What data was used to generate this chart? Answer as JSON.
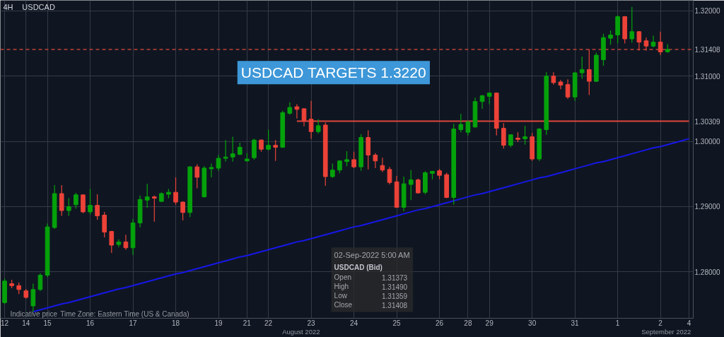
{
  "chart_data": {
    "type": "candlestick",
    "title": "USDCAD TARGETS 1.3220",
    "categories": [
      "12",
      null,
      null,
      "14",
      null,
      null,
      "15",
      null,
      null,
      null,
      null,
      null,
      "16",
      null,
      null,
      null,
      null,
      null,
      "17",
      null,
      null,
      null,
      null,
      null,
      "18",
      null,
      null,
      null,
      null,
      null,
      "19",
      null,
      null,
      null,
      "21",
      null,
      null,
      "22",
      null,
      null,
      null,
      null,
      null,
      "23",
      null,
      null,
      null,
      null,
      null,
      "24",
      null,
      null,
      null,
      null,
      null,
      "25",
      null,
      null,
      null,
      null,
      null,
      "26",
      null,
      null,
      null,
      "28",
      null,
      null,
      "29",
      null,
      null,
      null,
      null,
      null,
      "30",
      null,
      null,
      null,
      null,
      null,
      "31",
      null,
      null,
      null,
      null,
      null,
      "1",
      null,
      null,
      null,
      null,
      null,
      "2",
      null,
      null,
      null,
      "4"
    ],
    "ohlc": [
      [
        1.2753,
        1.279,
        1.2751,
        1.2786
      ],
      [
        1.2782,
        1.2788,
        1.2775,
        1.2779
      ],
      [
        1.2779,
        1.2784,
        1.2766,
        1.2773
      ],
      [
        1.2771,
        1.2774,
        1.2759,
        1.2761
      ],
      [
        1.2748,
        1.2782,
        1.2739,
        1.2773
      ],
      [
        1.2773,
        1.2798,
        1.2771,
        1.2795
      ],
      [
        1.2795,
        1.2874,
        1.2792,
        1.2869
      ],
      [
        1.2868,
        1.2933,
        1.2866,
        1.292
      ],
      [
        1.292,
        1.2933,
        1.2886,
        1.2894
      ],
      [
        1.2894,
        1.2913,
        1.2886,
        1.29
      ],
      [
        1.2903,
        1.2921,
        1.2897,
        1.2918
      ],
      [
        1.2918,
        1.2919,
        1.289,
        1.2892
      ],
      [
        1.2892,
        1.2927,
        1.2888,
        1.2902
      ],
      [
        1.2902,
        1.2919,
        1.288,
        1.2886
      ],
      [
        1.2887,
        1.2892,
        1.2853,
        1.2861
      ],
      [
        1.2862,
        1.2863,
        1.2829,
        1.2841
      ],
      [
        1.2842,
        1.285,
        1.2838,
        1.2846
      ],
      [
        1.2846,
        1.2857,
        1.2834,
        1.2837
      ],
      [
        1.2837,
        1.2881,
        1.2826,
        1.2875
      ],
      [
        1.2875,
        1.2917,
        1.2868,
        1.2911
      ],
      [
        1.291,
        1.2935,
        1.2898,
        1.2915
      ],
      [
        1.2915,
        1.2917,
        1.2877,
        1.2913
      ],
      [
        1.2908,
        1.2922,
        1.2907,
        1.292
      ],
      [
        1.2919,
        1.2927,
        1.2913,
        1.2922
      ],
      [
        1.2922,
        1.2945,
        1.2903,
        1.2907
      ],
      [
        1.2907,
        1.2908,
        1.2879,
        1.2891
      ],
      [
        1.2891,
        1.2962,
        1.2884,
        1.2961
      ],
      [
        1.2961,
        1.2965,
        1.2928,
        1.2945
      ],
      [
        1.2915,
        1.2962,
        1.2914,
        1.2959
      ],
      [
        1.2958,
        1.2966,
        1.2945,
        1.296
      ],
      [
        1.2959,
        1.2979,
        1.2955,
        1.2974
      ],
      [
        1.2974,
        1.3002,
        1.2969,
        1.2976
      ],
      [
        1.2976,
        1.3007,
        1.2969,
        1.2981
      ],
      [
        1.298,
        1.2998,
        1.2979,
        1.2991
      ],
      [
        1.297,
        1.2982,
        1.2969,
        1.2973
      ],
      [
        1.2975,
        1.3004,
        1.2972,
        1.3002
      ],
      [
        1.3002,
        1.3003,
        1.2984,
        1.2988
      ],
      [
        1.2988,
        1.3018,
        1.2986,
        1.2994
      ],
      [
        1.2994,
        1.3002,
        1.297,
        1.2991
      ],
      [
        1.2991,
        1.3047,
        1.299,
        1.3044
      ],
      [
        1.3043,
        1.306,
        1.3041,
        1.3052
      ],
      [
        1.3053,
        1.3057,
        1.3035,
        1.3049
      ],
      [
        1.305,
        1.3051,
        1.3023,
        1.3032
      ],
      [
        1.3034,
        1.3062,
        1.3004,
        1.3015
      ],
      [
        1.3015,
        1.3034,
        1.3012,
        1.3024
      ],
      [
        1.3025,
        1.3029,
        1.2932,
        1.2946
      ],
      [
        1.2946,
        1.2966,
        1.2944,
        1.2956
      ],
      [
        1.2956,
        1.2971,
        1.2951,
        1.297
      ],
      [
        1.2969,
        1.2985,
        1.2962,
        1.2972
      ],
      [
        1.2972,
        1.2984,
        1.2959,
        1.2961
      ],
      [
        1.2961,
        1.3011,
        1.2955,
        1.3006
      ],
      [
        1.3006,
        1.3017,
        1.2957,
        1.2979
      ],
      [
        1.2979,
        1.2982,
        1.2959,
        1.297
      ],
      [
        1.2963,
        1.2975,
        1.2953,
        1.2956
      ],
      [
        1.2957,
        1.2961,
        1.2934,
        1.2937
      ],
      [
        1.2938,
        1.2947,
        1.2898,
        1.2899
      ],
      [
        1.2899,
        1.2946,
        1.2893,
        1.2935
      ],
      [
        1.2934,
        1.2956,
        1.291,
        1.2941
      ],
      [
        1.2941,
        1.2943,
        1.292,
        1.2921
      ],
      [
        1.2922,
        1.2954,
        1.2919,
        1.2952
      ],
      [
        1.2951,
        1.2955,
        1.2942,
        1.2954
      ],
      [
        1.2955,
        1.2958,
        1.2942,
        1.2948
      ],
      [
        1.2949,
        1.2952,
        1.2913,
        1.2914
      ],
      [
        1.2914,
        1.3027,
        1.2903,
        1.3019
      ],
      [
        1.3018,
        1.3042,
        1.3014,
        1.3026
      ],
      [
        1.3014,
        1.3032,
        1.3009,
        1.303
      ],
      [
        1.3022,
        1.3067,
        1.3021,
        1.3061
      ],
      [
        1.3061,
        1.3071,
        1.305,
        1.307
      ],
      [
        1.3069,
        1.3075,
        1.3057,
        1.3074
      ],
      [
        1.3074,
        1.3075,
        1.3009,
        1.302
      ],
      [
        1.302,
        1.3028,
        1.2989,
        1.2994
      ],
      [
        1.2994,
        1.3011,
        1.2991,
        1.301
      ],
      [
        1.3005,
        1.3014,
        1.2999,
        1.3003
      ],
      [
        1.3004,
        1.3024,
        1.2995,
        1.3007
      ],
      [
        1.3007,
        1.3013,
        1.297,
        1.2973
      ],
      [
        1.2973,
        1.302,
        1.297,
        1.3019
      ],
      [
        1.3018,
        1.3106,
        1.301,
        1.31
      ],
      [
        1.31,
        1.3106,
        1.3087,
        1.309
      ],
      [
        1.3091,
        1.3094,
        1.308,
        1.3086
      ],
      [
        1.3087,
        1.3095,
        1.3065,
        1.3068
      ],
      [
        1.3068,
        1.3106,
        1.3062,
        1.3105
      ],
      [
        1.3105,
        1.313,
        1.3096,
        1.311
      ],
      [
        1.311,
        1.3141,
        1.3071,
        1.3092
      ],
      [
        1.3092,
        1.3136,
        1.3091,
        1.3132
      ],
      [
        1.3125,
        1.3165,
        1.3116,
        1.3159
      ],
      [
        1.3158,
        1.317,
        1.3148,
        1.3163
      ],
      [
        1.3163,
        1.3193,
        1.315,
        1.3191
      ],
      [
        1.3191,
        1.3192,
        1.315,
        1.3157
      ],
      [
        1.3157,
        1.3206,
        1.3151,
        1.3168
      ],
      [
        1.3168,
        1.3169,
        1.3139,
        1.3152
      ],
      [
        1.3154,
        1.3159,
        1.3139,
        1.3146
      ],
      [
        1.3146,
        1.3162,
        1.3144,
        1.3152
      ],
      [
        1.3152,
        1.3168,
        1.3132,
        1.3137
      ],
      [
        1.31373,
        1.3149,
        1.31359,
        1.31408
      ],
      null,
      null,
      null
    ],
    "colors": [
      "#05a20b",
      "#ec4238",
      "#ec4238",
      "#ec4238",
      "#05a20b",
      "#05a20b",
      "#05a20b",
      "#05a20b",
      "#ec4238",
      "#05a20b",
      "#05a20b",
      "#ec4238",
      "#05a20b",
      "#ec4238",
      "#ec4238",
      "#ec4238",
      "#05a20b",
      "#ec4238",
      "#05a20b",
      "#05a20b",
      "#05a20b",
      "#ec4238",
      "#05a20b",
      "#05a20b",
      "#ec4238",
      "#ec4238",
      "#05a20b",
      "#ec4238",
      "#05a20b",
      "#05a20b",
      "#05a20b",
      "#05a20b",
      "#05a20b",
      "#05a20b",
      "#05a20b",
      "#05a20b",
      "#ec4238",
      "#05a20b",
      "#ec4238",
      "#05a20b",
      "#05a20b",
      "#ec4238",
      "#ec4238",
      "#ec4238",
      "#05a20b",
      "#ec4238",
      "#05a20b",
      "#05a20b",
      "#05a20b",
      "#ec4238",
      "#05a20b",
      "#ec4238",
      "#ec4238",
      "#ec4238",
      "#ec4238",
      "#ec4238",
      "#05a20b",
      "#05a20b",
      "#ec4238",
      "#05a20b",
      "#05a20b",
      "#ec4238",
      "#ec4238",
      "#05a20b",
      "#05a20b",
      "#05a20b",
      "#05a20b",
      "#05a20b",
      "#05a20b",
      "#ec4238",
      "#ec4238",
      "#05a20b",
      "#ec4238",
      "#05a20b",
      "#ec4238",
      "#05a20b",
      "#05a20b",
      "#ec4238",
      "#ec4238",
      "#ec4238",
      "#05a20b",
      "#05a20b",
      "#ec4238",
      "#05a20b",
      "#05a20b",
      "#05a20b",
      "#05a20b",
      "#ec4238",
      "#05a20b",
      "#ec4238",
      "#ec4238",
      "#05a20b",
      "#ec4238",
      "#05a20b",
      null,
      null,
      null
    ],
    "series": [
      {
        "type": "line",
        "color": "#1717e8",
        "values": [
          null,
          null,
          null,
          null,
          1.2739,
          1.2742,
          1.2745,
          1.2748,
          1.2751,
          1.2753,
          1.2756,
          1.2759,
          1.2762,
          1.2765,
          1.2768,
          1.2771,
          1.2774,
          1.2776,
          1.2779,
          1.2782,
          1.2785,
          1.2788,
          1.2791,
          1.2794,
          1.2797,
          1.2799,
          1.2802,
          1.2805,
          1.2808,
          1.2811,
          1.2814,
          1.2817,
          1.282,
          1.2823,
          1.2825,
          1.2828,
          1.2831,
          1.2834,
          1.2837,
          1.284,
          1.2843,
          1.2846,
          1.2848,
          1.2851,
          1.2854,
          1.2857,
          1.286,
          1.2863,
          1.2866,
          1.2869,
          1.2871,
          1.2874,
          1.2877,
          1.288,
          1.2883,
          1.2886,
          1.2889,
          1.2892,
          1.2895,
          1.2897,
          1.29,
          1.2903,
          1.2906,
          1.2909,
          1.2912,
          1.2915,
          1.2918,
          1.292,
          1.2923,
          1.2926,
          1.2929,
          1.2932,
          1.2935,
          1.2938,
          1.2941,
          1.2944,
          1.2946,
          1.2949,
          1.2952,
          1.2955,
          1.2958,
          1.2961,
          1.2964,
          1.2967,
          1.2969,
          1.2972,
          1.2975,
          1.2978,
          1.2981,
          1.2984,
          1.2987,
          1.299,
          1.2992,
          1.2995,
          1.2998,
          1.3001,
          1.3004
        ]
      },
      {
        "type": "line",
        "color": "#e0443c",
        "values": [
          null,
          null,
          null,
          null,
          null,
          null,
          null,
          null,
          null,
          null,
          null,
          null,
          null,
          null,
          null,
          null,
          null,
          null,
          null,
          null,
          null,
          null,
          null,
          null,
          null,
          null,
          null,
          null,
          null,
          null,
          null,
          null,
          null,
          null,
          null,
          null,
          null,
          null,
          null,
          null,
          null,
          1.30309,
          1.30309,
          1.30309,
          1.30309,
          1.30309,
          1.30309,
          1.30309,
          1.30309,
          1.30309,
          1.30309,
          1.30309,
          1.30309,
          1.30309,
          1.30309,
          1.30309,
          1.30309,
          1.30309,
          1.30309,
          1.30309,
          1.30309,
          1.30309,
          1.30309,
          1.30309,
          1.30309,
          1.30309,
          1.30309,
          1.30309,
          1.30309,
          1.30309,
          1.30309,
          1.30309,
          1.30309,
          1.30309,
          1.30309,
          1.30309,
          1.30309,
          1.30309,
          1.30309,
          1.30309,
          1.30309,
          1.30309,
          1.30309,
          1.30309,
          1.30309,
          1.30309,
          1.30309,
          1.30309,
          1.30309,
          1.30309,
          1.30309,
          1.30309,
          1.30309,
          1.30309,
          1.30309,
          1.30309,
          1.30309
        ],
        "value_labels": [
          null,
          null,
          null,
          null,
          null,
          null,
          null,
          null,
          null,
          null,
          null,
          null,
          null,
          null,
          null,
          null,
          null,
          null,
          null,
          null,
          null,
          null,
          null,
          null,
          null,
          null,
          null,
          null,
          null,
          null,
          null,
          null,
          null,
          null,
          null,
          null,
          null,
          null,
          null,
          null,
          null,
          null,
          null,
          null,
          null,
          null,
          null,
          null,
          null,
          null,
          null,
          null,
          null,
          null,
          null,
          null,
          null,
          null,
          null,
          null,
          null,
          null,
          null,
          null,
          null,
          null,
          null,
          null,
          null,
          null,
          null,
          null,
          null,
          null,
          null,
          null,
          null,
          null,
          null,
          null,
          null,
          null,
          null,
          null,
          null,
          null,
          null,
          null,
          null,
          null,
          null,
          null,
          null,
          null,
          null,
          null,
          "1.30309"
        ]
      }
    ],
    "ref_lines": [
      {
        "axis": "y",
        "value": 1.31408,
        "label": "1.31408",
        "color": "#c0403a",
        "line_style": "dashed"
      }
    ],
    "ylim": [
      1.2729,
      1.3216
    ],
    "yticks": [
      {
        "value": 1.28,
        "label": "1.28000"
      },
      {
        "value": 1.29,
        "label": "1.29000"
      },
      {
        "value": 1.3,
        "label": "1.30000"
      },
      {
        "value": 1.31,
        "label": "1.31000"
      },
      {
        "value": 1.32,
        "label": "1.32000"
      }
    ],
    "grid": true,
    "annotations": [
      "4H",
      "USDCAD",
      "02-Sep-2022 5:00 AM",
      "USDCAD (Bid)",
      "Open 1.31373",
      "High 1.31490",
      "Low 1.31359",
      "Close 1.31408",
      "Indicative price",
      "Time Zone: Eastern Time (US & Canada)",
      "August 2022",
      "September 2022"
    ]
  }
}
